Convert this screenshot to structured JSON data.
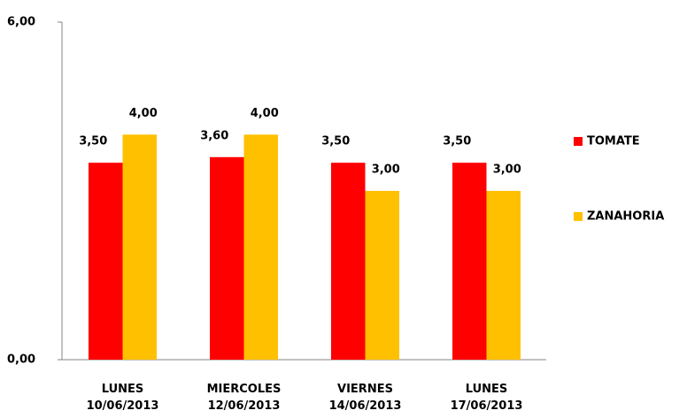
{
  "chart_data": {
    "type": "bar",
    "categories": [
      "LUNES\n10/06/2013",
      "MIERCOLES\n12/06/2013",
      "VIERNES\n14/06/2013",
      "LUNES\n17/06/2013"
    ],
    "series": [
      {
        "name": "TOMATE",
        "color": "#ff0000",
        "values": [
          3.5,
          3.6,
          3.5,
          3.5
        ],
        "value_labels": [
          "3,50",
          "3,60",
          "3,50",
          "3,50"
        ]
      },
      {
        "name": "ZANAHORIA",
        "color": "#ffc000",
        "values": [
          4,
          4,
          3,
          3
        ],
        "value_labels": [
          "4,00",
          "4,00",
          "3,00",
          "3,00"
        ]
      }
    ],
    "ylim": [
      0,
      6
    ],
    "yticks": [
      {
        "value": 0,
        "label": "0,00"
      },
      {
        "value": 6,
        "label": "6,00"
      }
    ],
    "legend": "right"
  }
}
